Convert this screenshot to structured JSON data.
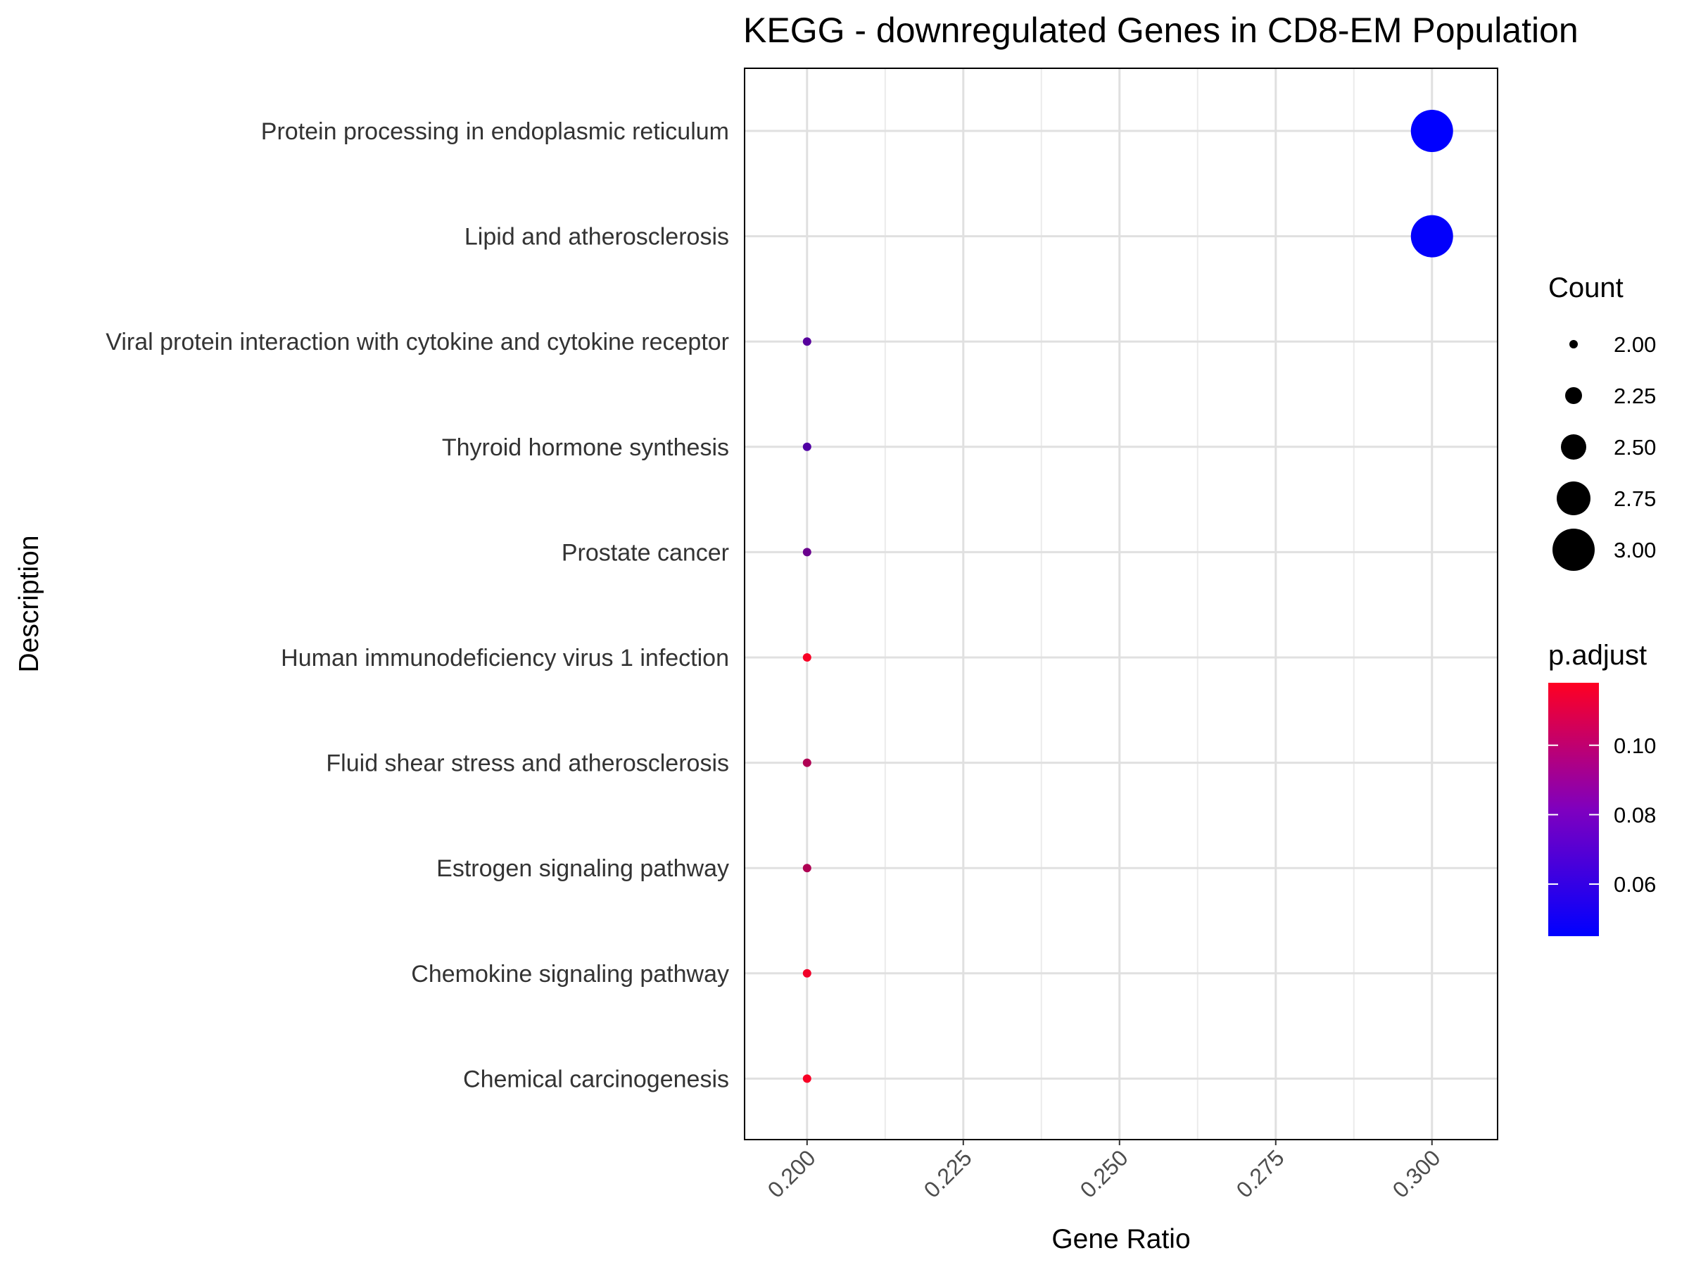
{
  "chart_data": {
    "type": "scatter",
    "title": "KEGG - downregulated Genes in CD8-EM Population",
    "xlabel": "Gene Ratio",
    "ylabel": "Description",
    "xlim": [
      0.19,
      0.3105
    ],
    "x_ticks": [
      "0.200",
      "0.225",
      "0.250",
      "0.275",
      "0.300"
    ],
    "grid": true,
    "categories": [
      "Protein processing in endoplasmic reticulum",
      "Lipid and atherosclerosis",
      "Viral protein interaction with cytokine and cytokine receptor",
      "Thyroid hormone synthesis",
      "Prostate cancer",
      "Human immunodeficiency virus 1 infection",
      "Fluid shear stress and atherosclerosis",
      "Estrogen signaling pathway",
      "Chemokine signaling pathway",
      "Chemical carcinogenesis"
    ],
    "points": [
      {
        "description": "Protein processing in endoplasmic reticulum",
        "gene_ratio": 0.3,
        "count": 3,
        "p_adjust": 0.045
      },
      {
        "description": "Lipid and atherosclerosis",
        "gene_ratio": 0.3,
        "count": 3,
        "p_adjust": 0.046
      },
      {
        "description": "Viral protein interaction with cytokine and cytokine receptor",
        "gene_ratio": 0.2,
        "count": 2,
        "p_adjust": 0.07
      },
      {
        "description": "Thyroid hormone synthesis",
        "gene_ratio": 0.2,
        "count": 2,
        "p_adjust": 0.068
      },
      {
        "description": "Prostate cancer",
        "gene_ratio": 0.2,
        "count": 2,
        "p_adjust": 0.075
      },
      {
        "description": "Human immunodeficiency virus 1 infection",
        "gene_ratio": 0.2,
        "count": 2,
        "p_adjust": 0.116
      },
      {
        "description": "Fluid shear stress and atherosclerosis",
        "gene_ratio": 0.2,
        "count": 2,
        "p_adjust": 0.095
      },
      {
        "description": "Estrogen signaling pathway",
        "gene_ratio": 0.2,
        "count": 2,
        "p_adjust": 0.095
      },
      {
        "description": "Chemokine signaling pathway",
        "gene_ratio": 0.2,
        "count": 2,
        "p_adjust": 0.114
      },
      {
        "description": "Chemical carcinogenesis",
        "gene_ratio": 0.2,
        "count": 2,
        "p_adjust": 0.116
      }
    ],
    "legend": {
      "placement": "right",
      "size": {
        "title": "Count",
        "values": [
          2.0,
          2.25,
          2.5,
          2.75,
          3.0
        ],
        "labels": [
          "2.00",
          "2.25",
          "2.50",
          "2.75",
          "3.00"
        ]
      },
      "color": {
        "title": "p.adjust",
        "range": [
          0.045,
          0.118
        ],
        "ticks": [
          0.1,
          0.08,
          0.06
        ],
        "labels": [
          "0.10",
          "0.08",
          "0.06"
        ],
        "low_color": "#0000ff",
        "high_color": "#ff0000"
      }
    }
  }
}
